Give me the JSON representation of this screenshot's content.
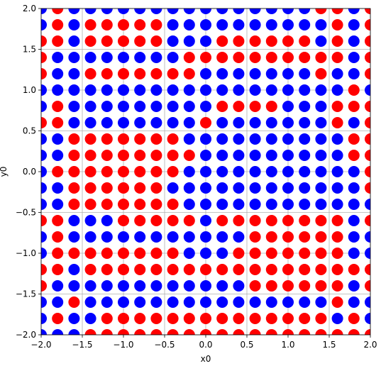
{
  "chart_data": {
    "type": "grid-scatter",
    "xlabel": "x0",
    "ylabel": "y0",
    "grid": true,
    "xlim": [
      -2.0,
      2.0
    ],
    "ylim": [
      -2.0,
      2.0
    ],
    "xticks": [
      {
        "value": -2.0,
        "label": "−2.0"
      },
      {
        "value": -1.5,
        "label": "−1.5"
      },
      {
        "value": -1.0,
        "label": "−1.0"
      },
      {
        "value": -0.5,
        "label": "−0.5"
      },
      {
        "value": 0.0,
        "label": "0.0"
      },
      {
        "value": 0.5,
        "label": "0.5"
      },
      {
        "value": 1.0,
        "label": "1.0"
      },
      {
        "value": 1.5,
        "label": "1.5"
      },
      {
        "value": 2.0,
        "label": "2.0"
      }
    ],
    "yticks": [
      {
        "value": -2.0,
        "label": "−2.0"
      },
      {
        "value": -1.5,
        "label": "−1.5"
      },
      {
        "value": -1.0,
        "label": "−1.0"
      },
      {
        "value": -0.5,
        "label": "−0.5"
      },
      {
        "value": 0.0,
        "label": "0.0"
      },
      {
        "value": 0.5,
        "label": "0.5"
      },
      {
        "value": 1.0,
        "label": "1.0"
      },
      {
        "value": 1.5,
        "label": "1.5"
      },
      {
        "value": 2.0,
        "label": "2.0"
      }
    ],
    "x": [
      -2.0,
      -1.8,
      -1.6,
      -1.4,
      -1.2,
      -1.0,
      -0.8,
      -0.6,
      -0.4,
      -0.2,
      0.0,
      0.2,
      0.4,
      0.6,
      0.8,
      1.0,
      1.2,
      1.4,
      1.6,
      1.8,
      2.0
    ],
    "y": [
      2.0,
      1.8,
      1.6,
      1.4,
      1.2,
      1.0,
      0.8,
      0.6,
      0.4,
      0.2,
      0.0,
      -0.2,
      -0.4,
      -0.6,
      -0.8,
      -1.0,
      -1.2,
      -1.4,
      -1.6,
      -1.8,
      -2.0
    ],
    "colors": [
      [
        "blue",
        "red",
        "blue",
        "blue",
        "blue",
        "blue",
        "blue",
        "blue",
        "blue",
        "blue",
        "blue",
        "blue",
        "blue",
        "blue",
        "blue",
        "blue",
        "blue",
        "red",
        "red",
        "blue",
        "red"
      ],
      [
        "blue",
        "red",
        "blue",
        "red",
        "red",
        "red",
        "red",
        "red",
        "blue",
        "blue",
        "blue",
        "blue",
        "blue",
        "blue",
        "blue",
        "blue",
        "blue",
        "blue",
        "red",
        "blue",
        "red"
      ],
      [
        "red",
        "red",
        "blue",
        "red",
        "red",
        "red",
        "red",
        "red",
        "blue",
        "blue",
        "blue",
        "red",
        "red",
        "red",
        "red",
        "red",
        "red",
        "blue",
        "red",
        "blue",
        "red"
      ],
      [
        "red",
        "blue",
        "blue",
        "blue",
        "blue",
        "blue",
        "blue",
        "blue",
        "blue",
        "red",
        "red",
        "red",
        "red",
        "red",
        "red",
        "red",
        "red",
        "red",
        "red",
        "blue",
        "red"
      ],
      [
        "red",
        "blue",
        "blue",
        "red",
        "red",
        "red",
        "red",
        "red",
        "red",
        "red",
        "blue",
        "blue",
        "blue",
        "blue",
        "blue",
        "blue",
        "blue",
        "red",
        "blue",
        "blue",
        "red"
      ],
      [
        "blue",
        "blue",
        "blue",
        "blue",
        "blue",
        "blue",
        "blue",
        "blue",
        "blue",
        "blue",
        "blue",
        "blue",
        "blue",
        "blue",
        "blue",
        "blue",
        "blue",
        "blue",
        "blue",
        "red",
        "blue"
      ],
      [
        "blue",
        "red",
        "blue",
        "blue",
        "blue",
        "blue",
        "blue",
        "blue",
        "blue",
        "blue",
        "blue",
        "red",
        "red",
        "red",
        "red",
        "blue",
        "blue",
        "blue",
        "red",
        "red",
        "red"
      ],
      [
        "red",
        "red",
        "blue",
        "blue",
        "blue",
        "blue",
        "blue",
        "blue",
        "blue",
        "blue",
        "red",
        "blue",
        "blue",
        "blue",
        "blue",
        "blue",
        "blue",
        "blue",
        "red",
        "blue",
        "red"
      ],
      [
        "blue",
        "blue",
        "red",
        "red",
        "red",
        "red",
        "red",
        "red",
        "red",
        "blue",
        "blue",
        "blue",
        "blue",
        "blue",
        "blue",
        "blue",
        "blue",
        "blue",
        "blue",
        "red",
        "red"
      ],
      [
        "blue",
        "blue",
        "red",
        "red",
        "red",
        "red",
        "red",
        "red",
        "red",
        "red",
        "blue",
        "blue",
        "blue",
        "blue",
        "blue",
        "blue",
        "blue",
        "blue",
        "blue",
        "red",
        "red"
      ],
      [
        "blue",
        "red",
        "red",
        "red",
        "red",
        "red",
        "red",
        "red",
        "red",
        "blue",
        "blue",
        "blue",
        "blue",
        "blue",
        "blue",
        "blue",
        "blue",
        "blue",
        "blue",
        "blue",
        "red"
      ],
      [
        "blue",
        "blue",
        "red",
        "red",
        "red",
        "red",
        "red",
        "red",
        "blue",
        "blue",
        "blue",
        "blue",
        "blue",
        "blue",
        "blue",
        "blue",
        "blue",
        "blue",
        "blue",
        "blue",
        "red"
      ],
      [
        "blue",
        "blue",
        "red",
        "red",
        "red",
        "red",
        "red",
        "red",
        "red",
        "blue",
        "blue",
        "blue",
        "blue",
        "blue",
        "blue",
        "blue",
        "blue",
        "blue",
        "blue",
        "blue",
        "blue"
      ],
      [
        "red",
        "red",
        "blue",
        "blue",
        "blue",
        "red",
        "red",
        "red",
        "red",
        "red",
        "blue",
        "red",
        "red",
        "red",
        "red",
        "red",
        "red",
        "red",
        "red",
        "blue",
        "red"
      ],
      [
        "blue",
        "red",
        "blue",
        "blue",
        "blue",
        "blue",
        "blue",
        "blue",
        "blue",
        "blue",
        "blue",
        "blue",
        "blue",
        "red",
        "red",
        "red",
        "red",
        "red",
        "red",
        "blue",
        "blue"
      ],
      [
        "blue",
        "red",
        "red",
        "red",
        "red",
        "red",
        "red",
        "red",
        "red",
        "blue",
        "blue",
        "blue",
        "red",
        "red",
        "red",
        "red",
        "red",
        "red",
        "red",
        "blue",
        "blue"
      ],
      [
        "red",
        "red",
        "blue",
        "red",
        "red",
        "red",
        "red",
        "red",
        "red",
        "red",
        "red",
        "red",
        "red",
        "red",
        "red",
        "red",
        "red",
        "red",
        "red",
        "red",
        "red"
      ],
      [
        "red",
        "blue",
        "blue",
        "blue",
        "blue",
        "blue",
        "blue",
        "blue",
        "blue",
        "blue",
        "blue",
        "blue",
        "blue",
        "red",
        "red",
        "red",
        "red",
        "red",
        "red",
        "blue",
        "red"
      ],
      [
        "blue",
        "blue",
        "red",
        "blue",
        "blue",
        "blue",
        "blue",
        "blue",
        "blue",
        "blue",
        "blue",
        "blue",
        "blue",
        "blue",
        "blue",
        "blue",
        "blue",
        "blue",
        "red",
        "blue",
        "blue"
      ],
      [
        "blue",
        "red",
        "blue",
        "blue",
        "red",
        "red",
        "red",
        "red",
        "red",
        "red",
        "red",
        "red",
        "red",
        "red",
        "red",
        "red",
        "red",
        "red",
        "blue",
        "red",
        "blue"
      ],
      [
        "blue",
        "blue",
        "blue",
        "red",
        "red",
        "red",
        "red",
        "red",
        "red",
        "red",
        "red",
        "red",
        "red",
        "red",
        "red",
        "red",
        "red",
        "red",
        "red",
        "red",
        "red"
      ]
    ]
  }
}
